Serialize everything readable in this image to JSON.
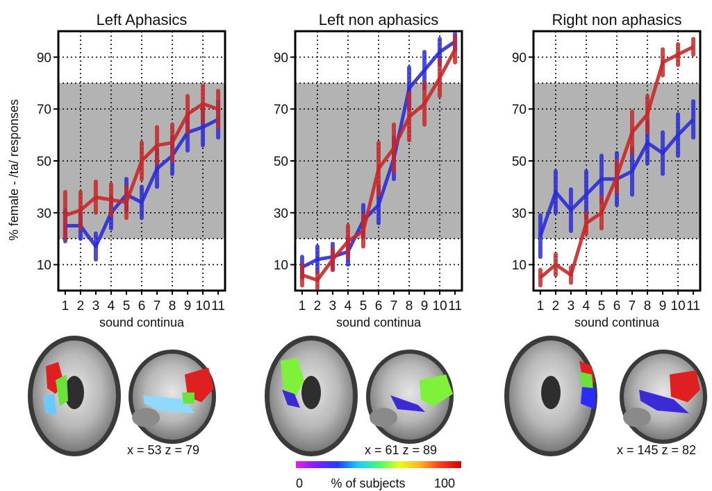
{
  "figure": {
    "ylabel": "% female - /ta/ responses",
    "colorbar": {
      "label": "% of subjects",
      "min_label": "0",
      "max_label": "100",
      "colors": [
        "#e81fe3",
        "#7a1fff",
        "#1f3cff",
        "#1fc8ff",
        "#3dff6a",
        "#e6ff1f",
        "#ffb21f",
        "#ff3a1f",
        "#d40000"
      ]
    },
    "colors": {
      "blue": "#2b2bd6",
      "red": "#c62828",
      "band": "#b3b3b3"
    }
  },
  "chart_data": [
    {
      "type": "line",
      "title": "Left Aphasics",
      "xlabel": "sound continua",
      "ylabel": "% female - /ta/ responses",
      "x": [
        1,
        2,
        3,
        4,
        5,
        6,
        7,
        8,
        9,
        10,
        11
      ],
      "xticks": [
        "1",
        "2",
        "3",
        "4",
        "5",
        "6",
        "7",
        "8",
        "9",
        "10",
        "11"
      ],
      "ylim": [
        0,
        100
      ],
      "yticks": [
        10,
        30,
        50,
        70,
        90
      ],
      "band": [
        20,
        80
      ],
      "grid": true,
      "series": [
        {
          "color": "blue",
          "values": [
            25,
            25,
            17,
            30,
            37,
            34,
            47,
            52,
            61,
            63,
            66
          ],
          "err": [
            6,
            5,
            5,
            6,
            6,
            6,
            7,
            7,
            7,
            7,
            7
          ]
        },
        {
          "color": "red",
          "values": [
            29,
            31,
            36,
            35,
            34,
            50,
            56,
            57,
            68,
            72,
            70
          ],
          "err": [
            9,
            7,
            6,
            6,
            6,
            7,
            7,
            7,
            7,
            7,
            7
          ]
        }
      ],
      "brain": {
        "coords": "x = 53 z = 79"
      }
    },
    {
      "type": "line",
      "title": "Left non aphasics",
      "xlabel": "sound continua",
      "ylabel": "% female - /ta/ responses",
      "x": [
        1,
        2,
        3,
        4,
        5,
        6,
        7,
        8,
        9,
        10,
        11
      ],
      "xticks": [
        "1",
        "2",
        "3",
        "4",
        "5",
        "6",
        "7",
        "8",
        "9",
        "10",
        "11"
      ],
      "ylim": [
        0,
        100
      ],
      "yticks": [
        10,
        30,
        50,
        70,
        90
      ],
      "band": [
        20,
        80
      ],
      "grid": true,
      "series": [
        {
          "color": "blue",
          "values": [
            9,
            12,
            13,
            15,
            27,
            33,
            51,
            78,
            85,
            92,
            96
          ],
          "err": [
            4,
            5,
            5,
            5,
            6,
            7,
            8,
            8,
            7,
            5,
            3
          ]
        },
        {
          "color": "red",
          "values": [
            6,
            4,
            12,
            19,
            23,
            47,
            55,
            67,
            72,
            82,
            93
          ],
          "err": [
            4,
            3,
            4,
            6,
            6,
            10,
            9,
            9,
            8,
            7,
            5
          ]
        }
      ],
      "brain": {
        "coords": "x = 61 z = 89"
      }
    },
    {
      "type": "line",
      "title": "Right non aphasics",
      "xlabel": "sound continua",
      "ylabel": "% female - /ta/ responses",
      "x": [
        1,
        2,
        3,
        4,
        5,
        6,
        7,
        8,
        9,
        10,
        11
      ],
      "xticks": [
        "1",
        "2",
        "3",
        "4",
        "5",
        "6",
        "7",
        "8",
        "9",
        "10",
        "11"
      ],
      "ylim": [
        0,
        100
      ],
      "yticks": [
        10,
        30,
        50,
        70,
        90
      ],
      "band": [
        20,
        80
      ],
      "grid": true,
      "series": [
        {
          "color": "blue",
          "values": [
            21,
            38,
            31,
            37,
            43,
            43,
            46,
            57,
            53,
            60,
            66
          ],
          "err": [
            8,
            8,
            8,
            9,
            9,
            10,
            9,
            8,
            8,
            8,
            7
          ]
        },
        {
          "color": "red",
          "values": [
            5,
            10,
            6,
            26,
            30,
            44,
            61,
            68,
            88,
            91,
            94
          ],
          "err": [
            3,
            4,
            3,
            4,
            6,
            6,
            8,
            7,
            5,
            4,
            3
          ]
        }
      ],
      "brain": {
        "coords": "x = 145 z = 82"
      }
    }
  ]
}
